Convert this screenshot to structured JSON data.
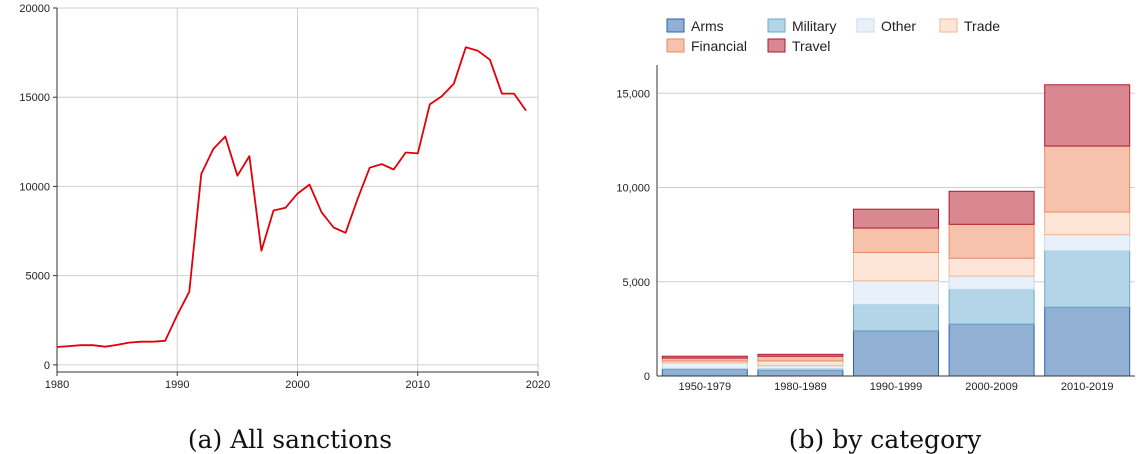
{
  "captions": {
    "left": "(a) All sanctions",
    "right": "(b) by category"
  },
  "chart_data": [
    {
      "type": "line",
      "title": "",
      "xlabel": "",
      "ylabel": "",
      "xlim": [
        1980,
        2020
      ],
      "ylim": [
        -400,
        20000
      ],
      "x_ticks": [
        1980,
        1990,
        2000,
        2010,
        2020
      ],
      "y_ticks": [
        0,
        5000,
        10000,
        15000,
        20000
      ],
      "x_tick_labels": [
        "1980",
        "1990",
        "2000",
        "2010",
        "2020"
      ],
      "y_tick_labels": [
        "0",
        "5000",
        "10000",
        "15000",
        "20000"
      ],
      "grid": true,
      "line_color": "#e0000a",
      "series": [
        {
          "x": [
            1980,
            1981,
            1982,
            1983,
            1984,
            1985,
            1986,
            1987,
            1988,
            1989,
            1990,
            1991,
            1992,
            1993,
            1994,
            1995,
            1996,
            1997,
            1998,
            1999,
            2000,
            2001,
            2002,
            2003,
            2004,
            2005,
            2006,
            2007,
            2008,
            2009,
            2010,
            2011,
            2012,
            2013,
            2014,
            2015,
            2016,
            2017,
            2018,
            2019
          ],
          "values": [
            1000,
            1050,
            1100,
            1100,
            1020,
            1120,
            1250,
            1300,
            1300,
            1350,
            2800,
            4100,
            10700,
            12100,
            12800,
            10600,
            11700,
            6400,
            8650,
            8800,
            9600,
            10100,
            8550,
            7700,
            7400,
            9300,
            11050,
            11250,
            10950,
            11900,
            11850,
            14600,
            15050,
            15750,
            17800,
            17600,
            17100,
            15200,
            15200,
            14250
          ]
        }
      ]
    },
    {
      "type": "bar",
      "stacked": true,
      "title": "",
      "xlabel": "",
      "ylabel": "",
      "ylim": [
        0,
        16500
      ],
      "y_ticks": [
        0,
        5000,
        10000,
        15000
      ],
      "y_tick_labels": [
        "0",
        "5,000",
        "10,000",
        "15,000"
      ],
      "grid": true,
      "legend_position": "top",
      "categories": [
        "1950-1979",
        "1980-1989",
        "1990-1999",
        "2000-2009",
        "2010-2019"
      ],
      "series": [
        {
          "name": "Arms",
          "fill": "#92b0d4",
          "stroke": "#2f63a8",
          "values": [
            350,
            300,
            2400,
            2750,
            3650
          ]
        },
        {
          "name": "Military",
          "fill": "#b4d5e8",
          "stroke": "#6fa8cc",
          "values": [
            50,
            100,
            1400,
            1850,
            3000
          ]
        },
        {
          "name": "Other",
          "fill": "#e8f1f9",
          "stroke": "#c4daec",
          "values": [
            300,
            150,
            1250,
            700,
            850
          ]
        },
        {
          "name": "Trade",
          "fill": "#fde6d8",
          "stroke": "#f2b696",
          "values": [
            100,
            250,
            1500,
            950,
            1200
          ]
        },
        {
          "name": "Financial",
          "fill": "#f7c2ac",
          "stroke": "#e5896a",
          "values": [
            150,
            250,
            1300,
            1800,
            3500
          ]
        },
        {
          "name": "Travel",
          "fill": "#d98892",
          "stroke": "#b0182a",
          "values": [
            100,
            100,
            1000,
            1750,
            3250
          ]
        }
      ],
      "legend_order": [
        "Arms",
        "Military",
        "Other",
        "Trade",
        "Financial",
        "Travel"
      ]
    }
  ]
}
